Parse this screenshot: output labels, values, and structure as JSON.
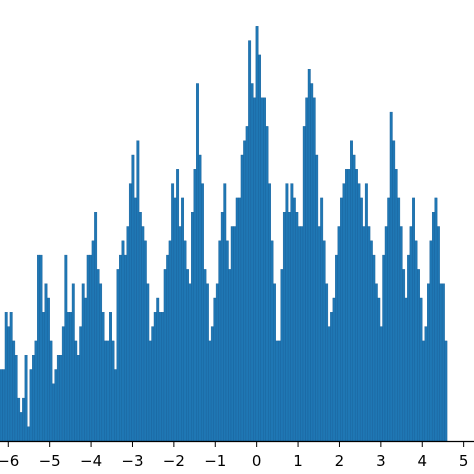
{
  "chart_data": {
    "type": "bar",
    "title": "",
    "xlabel": "",
    "ylabel": "",
    "xlim": [
      -6.2,
      5.25
    ],
    "ylim": [
      0,
      30
    ],
    "grid": false,
    "bar_color": "#1f77b4",
    "bar_edge_color": "#18609a",
    "axis_color": "#000000",
    "x_ticks": [
      -6,
      -5,
      -4,
      -3,
      -2,
      -1,
      0,
      1,
      2,
      3,
      4,
      5
    ],
    "x_tick_labels": [
      "−6",
      "−5",
      "−4",
      "−3",
      "−2",
      "−1",
      "0",
      "1",
      "2",
      "3",
      "4",
      "5"
    ],
    "bin_start": -6.2,
    "bin_width": 0.06,
    "counts": [
      5,
      5,
      9,
      8,
      9,
      7,
      6,
      3,
      2,
      3,
      6,
      1,
      5,
      6,
      7,
      13,
      13,
      9,
      11,
      10,
      7,
      4,
      5,
      6,
      6,
      8,
      13,
      9,
      9,
      11,
      7,
      6,
      8,
      11,
      10,
      13,
      13,
      14,
      16,
      12,
      11,
      9,
      7,
      7,
      9,
      7,
      5,
      12,
      13,
      14,
      13,
      15,
      18,
      20,
      17,
      21,
      16,
      15,
      14,
      11,
      7,
      8,
      9,
      10,
      9,
      9,
      12,
      13,
      14,
      18,
      17,
      19,
      15,
      17,
      14,
      12,
      11,
      16,
      19,
      25,
      20,
      18,
      12,
      11,
      7,
      8,
      10,
      11,
      14,
      16,
      18,
      14,
      12,
      15,
      15,
      17,
      17,
      20,
      21,
      22,
      28,
      25,
      24,
      29,
      27,
      24,
      24,
      22,
      18,
      14,
      11,
      7,
      7,
      12,
      16,
      18,
      16,
      18,
      17,
      16,
      15,
      15,
      22,
      24,
      26,
      25,
      24,
      20,
      15,
      17,
      14,
      11,
      8,
      9,
      10,
      13,
      15,
      17,
      18,
      19,
      19,
      21,
      20,
      19,
      18,
      17,
      15,
      18,
      15,
      14,
      13,
      11,
      10,
      8,
      13,
      15,
      17,
      23,
      21,
      19,
      17,
      15,
      12,
      10,
      13,
      15,
      17,
      14,
      12,
      10,
      7,
      8,
      11,
      14,
      16,
      17,
      15,
      11,
      11,
      7
    ]
  }
}
